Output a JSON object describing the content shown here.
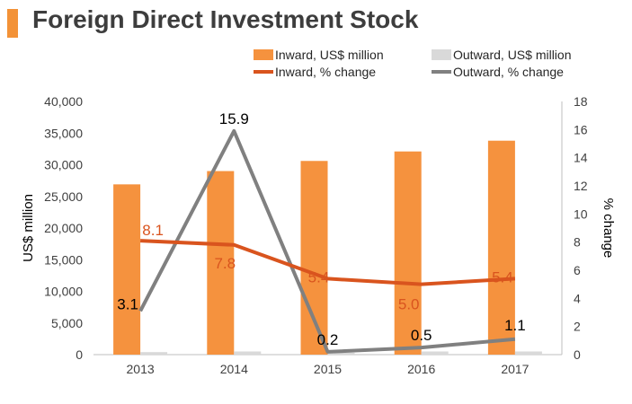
{
  "header": {
    "title": "Foreign Direct Investment Stock"
  },
  "colors": {
    "inward_bar": "#f5923e",
    "outward_bar": "#d9d9d9",
    "inward_line": "#d9541e",
    "outward_line": "#808080",
    "title_accent": "#f39237"
  },
  "chart_data": {
    "type": "bar",
    "categories": [
      "2013",
      "2014",
      "2015",
      "2016",
      "2017"
    ],
    "series": [
      {
        "name": "Inward, US$ million",
        "type": "bar",
        "axis": "left",
        "values": [
          26900,
          29000,
          30600,
          32100,
          33800
        ]
      },
      {
        "name": "Outward, US$ million",
        "type": "bar",
        "axis": "left",
        "values": [
          400,
          500,
          300,
          500,
          500
        ]
      },
      {
        "name": "Inward, % change",
        "type": "line",
        "axis": "right",
        "values": [
          8.1,
          7.8,
          5.4,
          5.0,
          5.4
        ],
        "labels": [
          "8.1",
          "7.8",
          "5.4",
          "5.0",
          "5.4"
        ]
      },
      {
        "name": "Outward, % change",
        "type": "line",
        "axis": "right",
        "values": [
          3.1,
          15.9,
          0.2,
          0.5,
          1.1
        ],
        "labels": [
          "3.1",
          "15.9",
          "0.2",
          "0.5",
          "1.1"
        ]
      }
    ],
    "ylabel": "US$ million",
    "y2label": "% change",
    "ylim": [
      0,
      40000
    ],
    "y2lim": [
      0,
      18
    ],
    "yticks": [
      "0",
      "5,000",
      "10,000",
      "15,000",
      "20,000",
      "25,000",
      "30,000",
      "35,000",
      "40,000"
    ],
    "y2ticks": [
      "0",
      "2",
      "4",
      "6",
      "8",
      "10",
      "12",
      "14",
      "16",
      "18"
    ],
    "legend_position": "top"
  }
}
